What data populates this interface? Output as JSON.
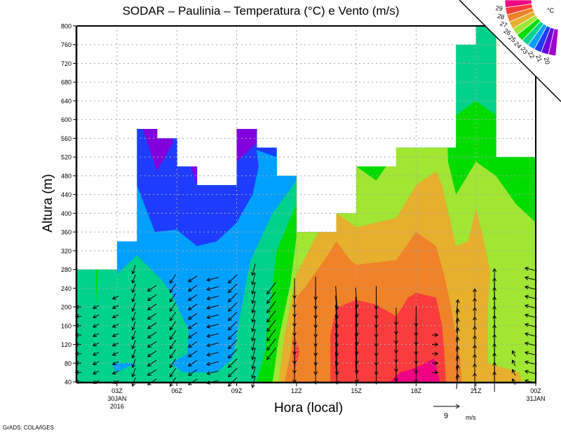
{
  "chart_data": {
    "type": "heatmap",
    "title": "SODAR – Paulinia – Temperatura (°C) e Vento (m/s)",
    "xlabel": "Hora (local)",
    "ylabel": "Altura (m)",
    "xlim": [
      1,
      24
    ],
    "ylim": [
      40,
      800
    ],
    "grid": true,
    "x_ticks": [
      {
        "h": 3,
        "label": "03Z",
        "sub": [
          "30JAN",
          "2016"
        ]
      },
      {
        "h": 6,
        "label": "06Z",
        "sub": []
      },
      {
        "h": 9,
        "label": "09Z",
        "sub": []
      },
      {
        "h": 12,
        "label": "12Z",
        "sub": []
      },
      {
        "h": 15,
        "label": "15Z",
        "sub": []
      },
      {
        "h": 18,
        "label": "18Z",
        "sub": []
      },
      {
        "h": 21,
        "label": "21Z",
        "sub": []
      },
      {
        "h": 24,
        "label": "00Z",
        "sub": [
          "31JAN"
        ]
      }
    ],
    "y_ticks": [
      40,
      80,
      120,
      160,
      200,
      240,
      280,
      320,
      360,
      400,
      440,
      480,
      520,
      560,
      600,
      640,
      680,
      720,
      760,
      800
    ],
    "data_top": [
      {
        "from": 1,
        "to": 3,
        "top": 280
      },
      {
        "from": 3,
        "to": 4,
        "top": 340
      },
      {
        "from": 4,
        "to": 5,
        "top": 580
      },
      {
        "from": 5,
        "to": 6,
        "top": 560
      },
      {
        "from": 6,
        "to": 7,
        "top": 500
      },
      {
        "from": 7,
        "to": 9,
        "top": 460
      },
      {
        "from": 9,
        "to": 10,
        "top": 580
      },
      {
        "from": 10,
        "to": 11,
        "top": 540
      },
      {
        "from": 11,
        "to": 12,
        "top": 480
      },
      {
        "from": 12,
        "to": 14,
        "top": 360
      },
      {
        "from": 14,
        "to": 15,
        "top": 400
      },
      {
        "from": 15,
        "to": 17,
        "top": 500
      },
      {
        "from": 17,
        "to": 20,
        "top": 540
      },
      {
        "from": 20,
        "to": 21,
        "top": 760
      },
      {
        "from": 21,
        "to": 22,
        "top": 800
      },
      {
        "from": 22,
        "to": 24,
        "top": 520
      }
    ],
    "temperature_base": {
      "range": "23-24",
      "color": "#00d28c"
    },
    "temperature_regions": [
      {
        "range": "22-23",
        "color": "#00a0ff",
        "polys": [
          [
            [
              3.0,
              270
            ],
            [
              4.0,
              310
            ],
            [
              5.2,
              260
            ],
            [
              5.7,
              230
            ],
            [
              6.6,
              150
            ],
            [
              6.5,
              100
            ],
            [
              5.7,
              80
            ],
            [
              6.3,
              60
            ],
            [
              8.0,
              60
            ],
            [
              8.8,
              90
            ],
            [
              9.5,
              260
            ],
            [
              9.7,
              300
            ],
            [
              10.8,
              400
            ],
            [
              12.0,
              470
            ],
            [
              12.0,
              820
            ],
            [
              3.0,
              820
            ]
          ],
          [
            [
              2.76,
              80
            ],
            [
              4.0,
              80
            ],
            [
              2.93,
              60
            ]
          ]
        ]
      },
      {
        "range": "21-22",
        "color": "#1e3cff",
        "polys": [
          [
            [
              4.0,
              820
            ],
            [
              4.0,
              460
            ],
            [
              4.9,
              360
            ],
            [
              6.0,
              365
            ],
            [
              7.0,
              330
            ],
            [
              8.0,
              340
            ],
            [
              9.0,
              380
            ],
            [
              9.8,
              440
            ],
            [
              10.1,
              500
            ],
            [
              10.0,
              535
            ],
            [
              11.0,
              520
            ],
            [
              11.0,
              820
            ]
          ]
        ]
      },
      {
        "range": "20-21",
        "color": "#8200dc",
        "polys": [
          [
            [
              4.3,
              580
            ],
            [
              5.0,
              490
            ],
            [
              5.8,
              550
            ],
            [
              5.8,
              580
            ]
          ],
          [
            [
              6.7,
              500
            ],
            [
              7.0,
              460
            ],
            [
              7.0,
              500
            ]
          ],
          [
            [
              9.0,
              580
            ],
            [
              10.0,
              580
            ],
            [
              10.0,
              550
            ],
            [
              9.0,
              510
            ]
          ]
        ]
      },
      {
        "range": "24-25",
        "color": "#00dc00",
        "polys": [
          [
            [
              10.0,
              40
            ],
            [
              10.4,
              100
            ],
            [
              11.0,
              320
            ],
            [
              12.0,
              420
            ],
            [
              12.0,
              820
            ],
            [
              20.0,
              820
            ],
            [
              20.0,
              610
            ],
            [
              21.0,
              640
            ],
            [
              22.0,
              610
            ],
            [
              22.0,
              820
            ],
            [
              24.0,
              820
            ],
            [
              24.0,
              40
            ]
          ],
          [
            [
              1.93,
              280
            ],
            [
              2.03,
              280
            ],
            [
              1.98,
              200
            ]
          ]
        ]
      },
      {
        "range": "25-26",
        "color": "#a0e632",
        "polys": [
          [
            [
              10.8,
              40
            ],
            [
              11.1,
              130
            ],
            [
              11.7,
              250
            ],
            [
              12.0,
              350
            ],
            [
              12.0,
              820
            ],
            [
              15.0,
              820
            ],
            [
              15.0,
              500
            ],
            [
              16.0,
              470
            ],
            [
              16.5,
              500
            ],
            [
              16.5,
              820
            ],
            [
              19.4,
              820
            ],
            [
              19.6,
              510
            ],
            [
              20.0,
              440
            ],
            [
              21.0,
              510
            ],
            [
              22.0,
              480
            ],
            [
              23.0,
              420
            ],
            [
              24.0,
              380
            ],
            [
              24.0,
              40
            ]
          ]
        ]
      },
      {
        "range": "26-27",
        "color": "#e6af2d",
        "polys": [
          [
            [
              11.1,
              40
            ],
            [
              11.4,
              140
            ],
            [
              12.0,
              270
            ],
            [
              13.1,
              360
            ],
            [
              14.0,
              400
            ],
            [
              15.0,
              370
            ],
            [
              17.0,
              390
            ],
            [
              18.0,
              460
            ],
            [
              19.0,
              490
            ],
            [
              19.3,
              460
            ],
            [
              20.0,
              330
            ],
            [
              20.6,
              340
            ],
            [
              21.0,
              410
            ],
            [
              21.3,
              360
            ],
            [
              21.7,
              280
            ],
            [
              21.6,
              190
            ],
            [
              21.6,
              80
            ],
            [
              23.2,
              60
            ],
            [
              23.3,
              40
            ]
          ]
        ]
      },
      {
        "range": "27-28",
        "color": "#f08228",
        "polys": [
          [
            [
              11.4,
              40
            ],
            [
              11.7,
              100
            ],
            [
              12.0,
              220
            ],
            [
              12.4,
              240
            ],
            [
              13.4,
              300
            ],
            [
              14.0,
              340
            ],
            [
              14.7,
              300
            ],
            [
              15.0,
              290
            ],
            [
              17.0,
              300
            ],
            [
              18.0,
              360
            ],
            [
              19.0,
              330
            ],
            [
              19.4,
              270
            ],
            [
              19.7,
              210
            ],
            [
              20.0,
              140
            ],
            [
              20.2,
              90
            ],
            [
              20.3,
              40
            ]
          ]
        ]
      },
      {
        "range": "28-29",
        "color": "#fa3c3c",
        "polys": [
          [
            [
              13.7,
              40
            ],
            [
              13.7,
              140
            ],
            [
              13.9,
              180
            ],
            [
              14.1,
              200
            ],
            [
              15.0,
              215
            ],
            [
              16.0,
              205
            ],
            [
              17.0,
              180
            ],
            [
              17.6,
              220
            ],
            [
              18.0,
              230
            ],
            [
              19.0,
              220
            ],
            [
              19.3,
              160
            ],
            [
              19.4,
              110
            ],
            [
              19.5,
              40
            ]
          ],
          [
            [
              11.9,
              140
            ],
            [
              12.15,
              105
            ],
            [
              11.9,
              60
            ],
            [
              11.85,
              100
            ]
          ]
        ]
      },
      {
        "range": ">29",
        "color": "#f00082",
        "polys": [
          [
            [
              16.7,
              40
            ],
            [
              17.2,
              60
            ],
            [
              18.0,
              70
            ],
            [
              18.9,
              90
            ],
            [
              19.2,
              40
            ]
          ]
        ]
      }
    ],
    "wind": {
      "units": "m/s",
      "reference": {
        "speed": 9,
        "label_value": "9",
        "label_units": "m/s"
      },
      "columns": [
        {
          "h": 1.07,
          "from": 40,
          "to": 200,
          "u": -2,
          "v": 0
        },
        {
          "h": 1.95,
          "from": 40,
          "to": 200,
          "u": -2,
          "v": -1
        },
        {
          "h": 2.93,
          "from": 40,
          "to": 220,
          "u": -2,
          "v": -1
        },
        {
          "h": 3.85,
          "from": 40,
          "to": 280,
          "u": -1,
          "v": -3
        },
        {
          "h": 4.76,
          "from": 40,
          "to": 250,
          "u": -3,
          "v": -2
        },
        {
          "h": 5.8,
          "from": 40,
          "to": 260,
          "u": -2,
          "v": -3
        },
        {
          "h": 6.8,
          "from": 40,
          "to": 260,
          "u": -3,
          "v": -2
        },
        {
          "h": 7.8,
          "from": 40,
          "to": 260,
          "u": -4,
          "v": -1
        },
        {
          "h": 8.8,
          "from": 40,
          "to": 270,
          "u": -3,
          "v": -3
        },
        {
          "h": 9.86,
          "from": 40,
          "to": 280,
          "u": -1,
          "v": -4
        },
        {
          "h": 10.74,
          "from": 100,
          "to": 250,
          "u": -3,
          "v": -4
        },
        {
          "h": 11.9,
          "from": 60,
          "to": 240,
          "u": 0,
          "v": -7
        },
        {
          "h": 12.96,
          "from": 60,
          "to": 240,
          "u": 0,
          "v": -8
        },
        {
          "h": 14.0,
          "from": 60,
          "to": 230,
          "u": 0.5,
          "v": -8
        },
        {
          "h": 15.0,
          "from": 60,
          "to": 230,
          "u": 0.5,
          "v": -7
        },
        {
          "h": 16.0,
          "from": 60,
          "to": 230,
          "u": 0,
          "v": -8
        },
        {
          "h": 17.0,
          "from": 60,
          "to": 180,
          "u": 0,
          "v": -6
        },
        {
          "h": 18.0,
          "from": 60,
          "to": 180,
          "u": 0,
          "v": -7
        },
        {
          "h": 18.94,
          "from": 60,
          "to": 140,
          "u": 2,
          "v": 0
        },
        {
          "h": 20.06,
          "from": 40,
          "to": 200,
          "u": 0.5,
          "v": 5
        },
        {
          "h": 20.94,
          "from": 40,
          "to": 220,
          "u": 0,
          "v": 6
        },
        {
          "h": 21.93,
          "from": 40,
          "to": 260,
          "u": 0,
          "v": 7
        },
        {
          "h": 22.9,
          "from": 40,
          "to": 110,
          "u": -1,
          "v": 2
        },
        {
          "h": 23.76,
          "from": 40,
          "to": 280,
          "u": -4,
          "v": 1
        }
      ]
    },
    "legend": {
      "placement": "top-right",
      "units": "°C",
      "colors": [
        "#f00082",
        "#fa3c3c",
        "#f08228",
        "#e6af2d",
        "#a0e632",
        "#00dc00",
        "#00d28c",
        "#00a0ff",
        "#1e3cff",
        "#6e00dc",
        "#a000c8"
      ],
      "labels": [
        "29",
        "28",
        "27",
        "26",
        "25",
        "24",
        "23",
        "22",
        "21",
        "20"
      ]
    },
    "footer": "GrADS: COLA/IGES"
  }
}
